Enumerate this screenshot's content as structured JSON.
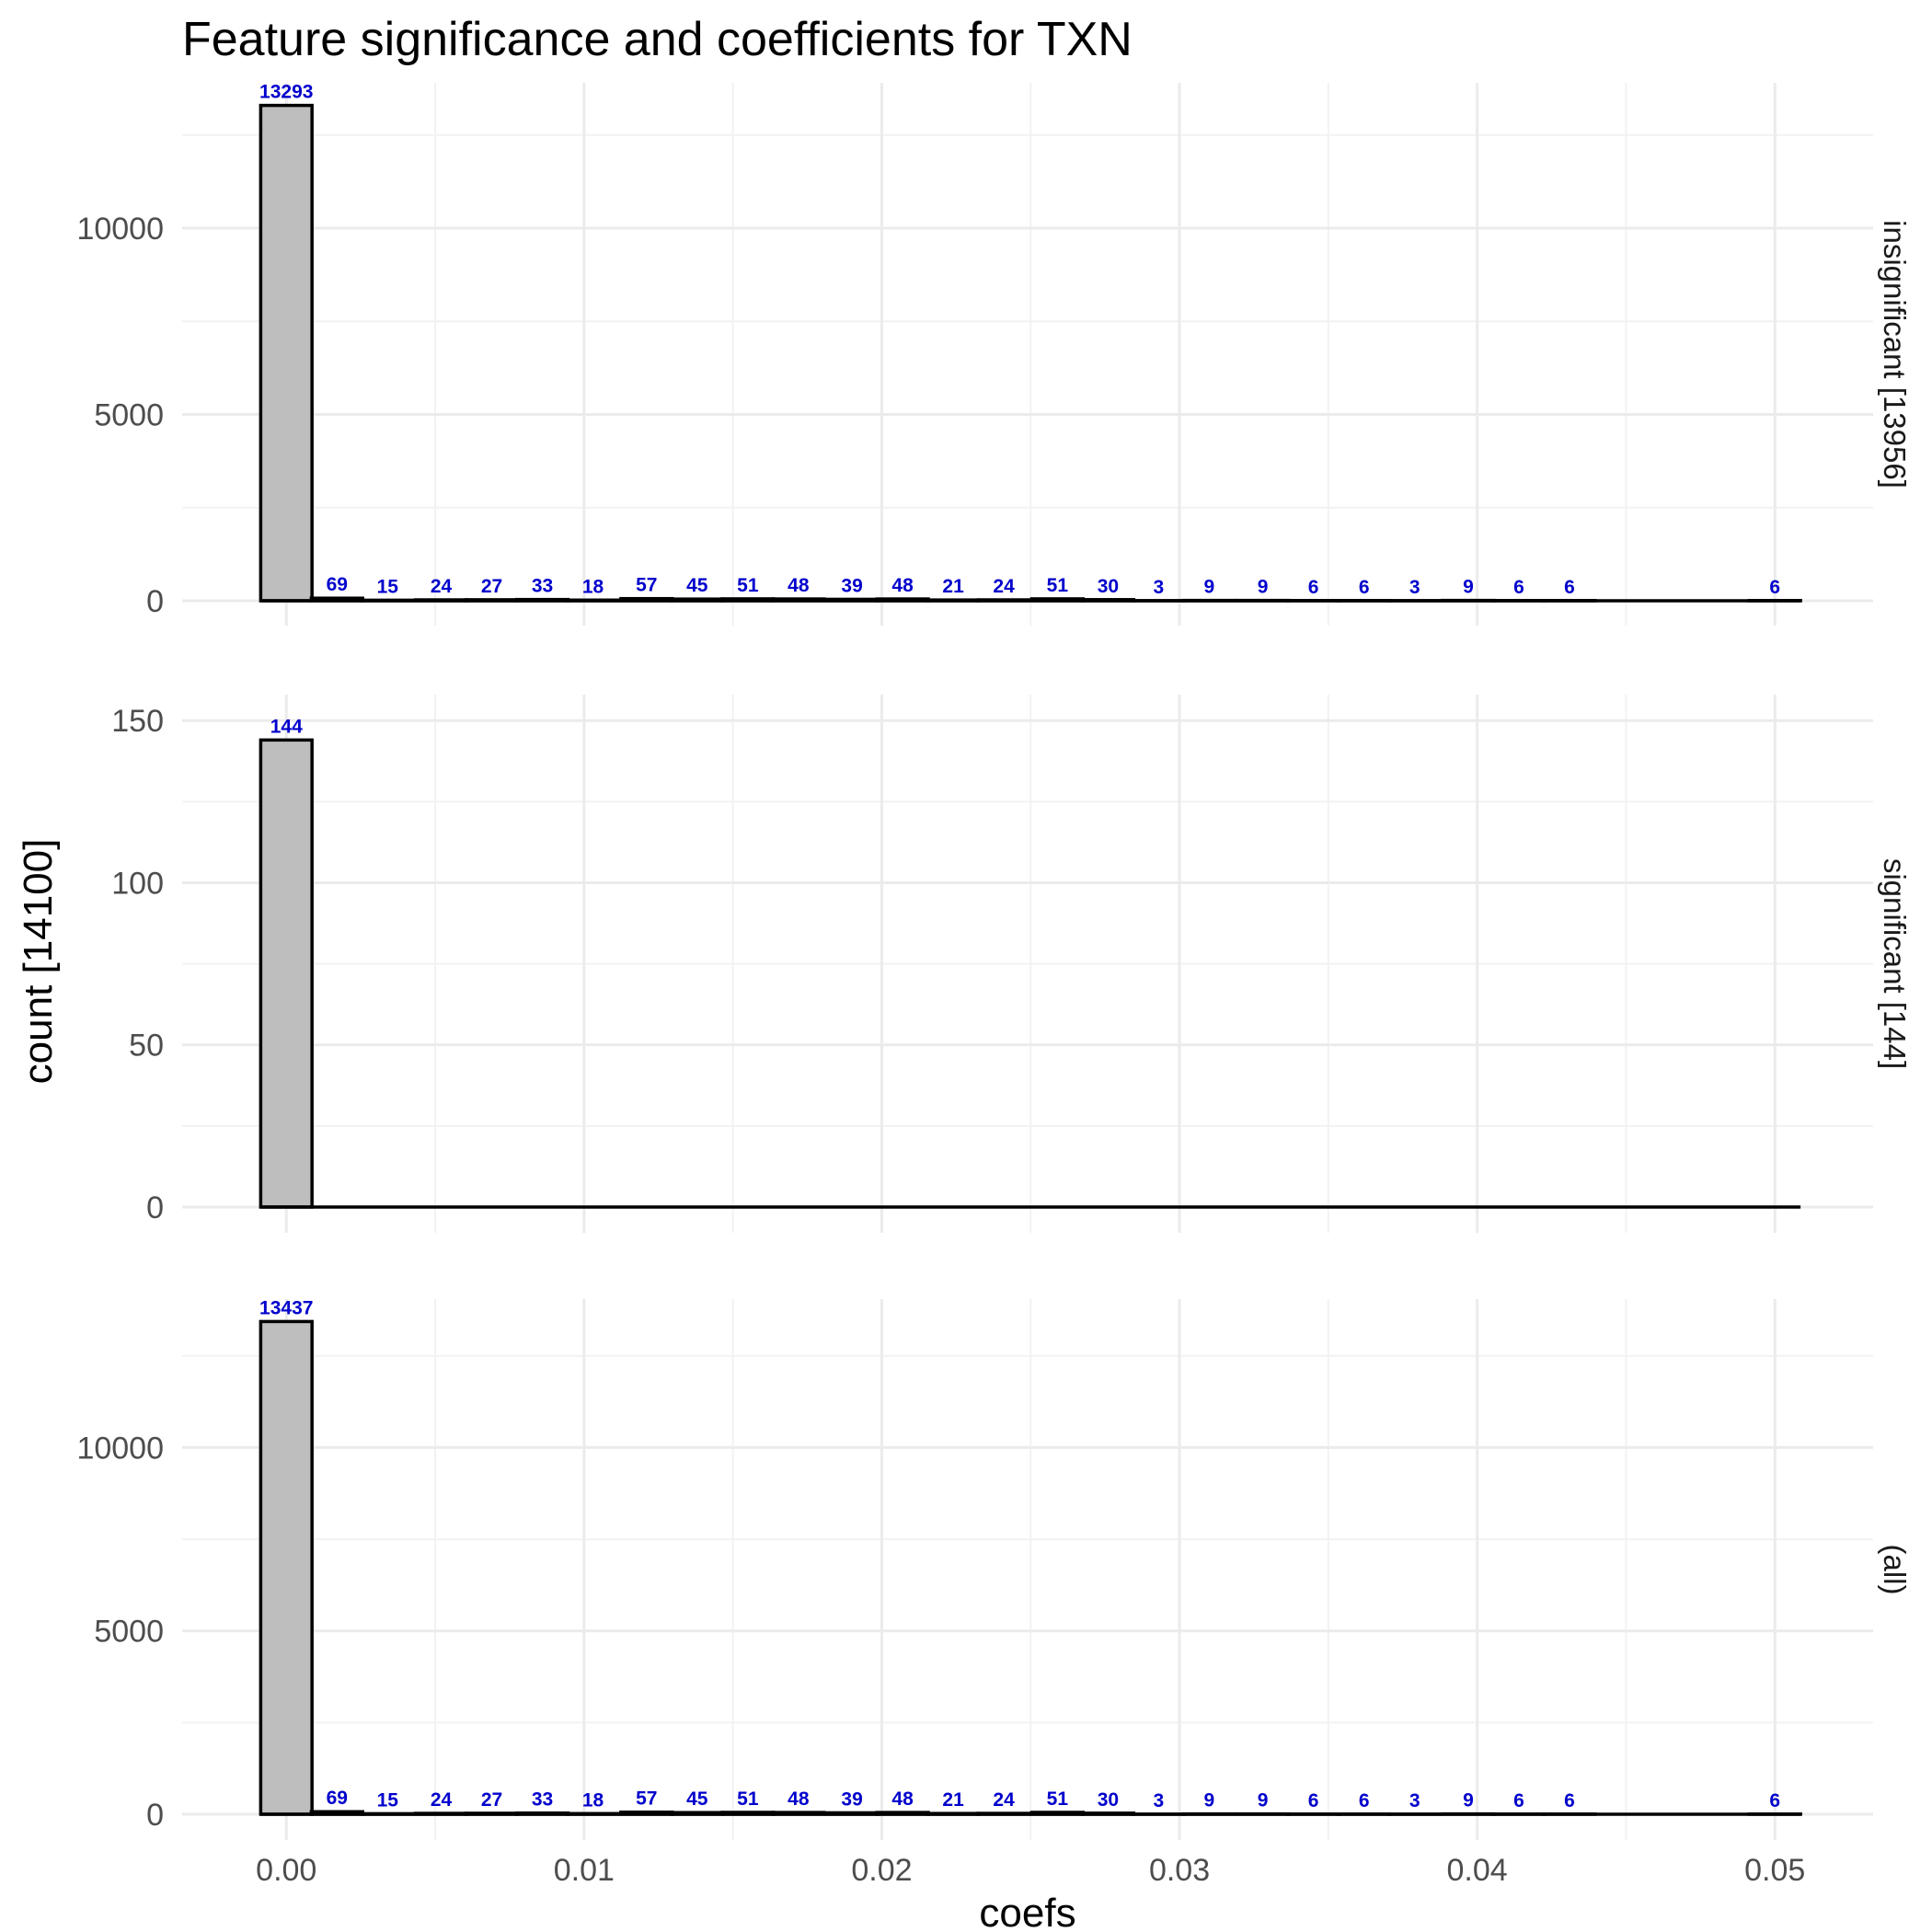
{
  "chart_data": {
    "type": "bar",
    "title": "Feature significance and coefficients for TXN",
    "xlabel": "coefs",
    "ylabel": "count [14100]",
    "grid": true,
    "xlim": [
      -0.0035,
      0.0533
    ],
    "x_ticks": [
      0.0,
      0.01,
      0.02,
      0.03,
      0.04,
      0.05
    ],
    "x_tick_labels": [
      "0.00",
      "0.01",
      "0.02",
      "0.03",
      "0.04",
      "0.05"
    ],
    "bin_width": 0.001724,
    "bin_centers": [
      0.0,
      0.0017,
      0.0034,
      0.0052,
      0.0069,
      0.0086,
      0.0103,
      0.0121,
      0.0138,
      0.0155,
      0.0172,
      0.019,
      0.0207,
      0.0224,
      0.0241,
      0.0259,
      0.0276,
      0.0293,
      0.031,
      0.0328,
      0.0345,
      0.0362,
      0.0379,
      0.0397,
      0.0414,
      0.0431,
      0.0448,
      0.0466,
      0.0483,
      0.05
    ],
    "panels": [
      {
        "strip": "insignificant [13956]",
        "ylim": [
          0,
          13900
        ],
        "y_ticks": [
          0,
          5000,
          10000
        ],
        "y_tick_labels": [
          "0",
          "5000",
          "10000"
        ],
        "values": [
          13293,
          69,
          15,
          24,
          27,
          33,
          18,
          57,
          45,
          51,
          48,
          39,
          48,
          21,
          24,
          51,
          30,
          3,
          9,
          9,
          6,
          6,
          3,
          9,
          6,
          6,
          0,
          0,
          0,
          6
        ],
        "labels": [
          "13293",
          "69",
          "15",
          "24",
          "27",
          "33",
          "18",
          "57",
          "45",
          "51",
          "48",
          "39",
          "48",
          "21",
          "24",
          "51",
          "30",
          "3",
          "9",
          "9",
          "6",
          "6",
          "3",
          "9",
          "6",
          "6",
          "",
          "",
          "",
          "6"
        ]
      },
      {
        "strip": "significant [144]",
        "ylim": [
          0,
          158
        ],
        "y_ticks": [
          0,
          50,
          100,
          150
        ],
        "y_tick_labels": [
          "0",
          "50",
          "100",
          "150"
        ],
        "values": [
          144,
          0,
          0,
          0,
          0,
          0,
          0,
          0,
          0,
          0,
          0,
          0,
          0,
          0,
          0,
          0,
          0,
          0,
          0,
          0,
          0,
          0,
          0,
          0,
          0,
          0,
          0,
          0,
          0,
          0
        ],
        "labels": [
          "144",
          "",
          "",
          "",
          "",
          "",
          "",
          "",
          "",
          "",
          "",
          "",
          "",
          "",
          "",
          "",
          "",
          "",
          "",
          "",
          "",
          "",
          "",
          "",
          "",
          "",
          "",
          "",
          "",
          ""
        ]
      },
      {
        "strip": "(all)",
        "ylim": [
          0,
          14050
        ],
        "y_ticks": [
          0,
          5000,
          10000
        ],
        "y_tick_labels": [
          "0",
          "5000",
          "10000"
        ],
        "values": [
          13437,
          69,
          15,
          24,
          27,
          33,
          18,
          57,
          45,
          51,
          48,
          39,
          48,
          21,
          24,
          51,
          30,
          3,
          9,
          9,
          6,
          6,
          3,
          9,
          6,
          6,
          0,
          0,
          0,
          6
        ],
        "labels": [
          "13437",
          "69",
          "15",
          "24",
          "27",
          "33",
          "18",
          "57",
          "45",
          "51",
          "48",
          "39",
          "48",
          "21",
          "24",
          "51",
          "30",
          "3",
          "9",
          "9",
          "6",
          "6",
          "3",
          "9",
          "6",
          "6",
          "",
          "",
          "",
          "6"
        ]
      }
    ]
  }
}
